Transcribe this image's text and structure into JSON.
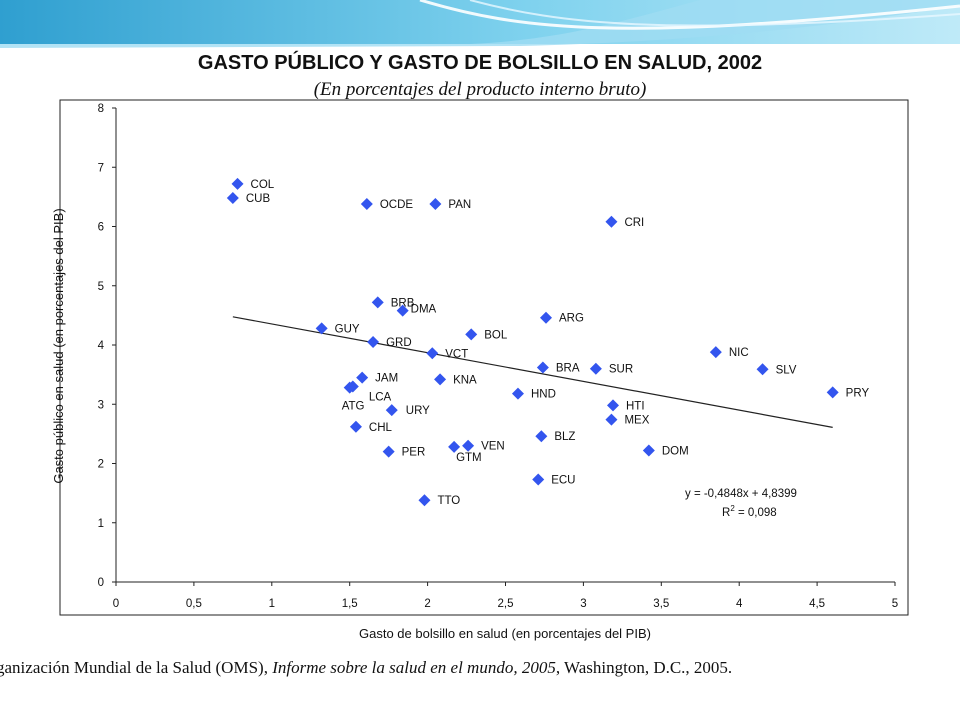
{
  "page": {
    "title": "GASTO PÚBLICO Y GASTO DE BOLSILLO EN SALUD, 2002",
    "subtitle": "(En porcentajes del producto interno bruto)",
    "source_part1": "ganización Mundial de la Salud (OMS), ",
    "source_part2": "Informe sobre la salud en el mundo, 2005",
    "source_part3": ", Washington, D.C., 2005."
  },
  "chart_data": {
    "type": "scatter",
    "title": "GASTO PÚBLICO Y GASTO DE BOLSILLO EN SALUD, 2002",
    "subtitle": "(En porcentajes del producto interno bruto)",
    "xlabel": "Gasto de bolsillo en salud (en porcentajes del PIB)",
    "ylabel": "Gasto público en salud (en porcentajes del PIB)",
    "xlim": [
      0,
      5
    ],
    "ylim": [
      0,
      8
    ],
    "x_ticks": [
      "0",
      "0,5",
      "1",
      "1,5",
      "2",
      "2,5",
      "3",
      "3,5",
      "4",
      "4,5",
      "5"
    ],
    "y_ticks": [
      "0",
      "1",
      "2",
      "3",
      "4",
      "5",
      "6",
      "7",
      "8"
    ],
    "grid": false,
    "marker_color": "#3355ee",
    "points": [
      {
        "label": "COL",
        "x": 0.78,
        "y": 6.72
      },
      {
        "label": "CUB",
        "x": 0.75,
        "y": 6.48
      },
      {
        "label": "OCDE",
        "x": 1.61,
        "y": 6.38
      },
      {
        "label": "PAN",
        "x": 2.05,
        "y": 6.38
      },
      {
        "label": "CRI",
        "x": 3.18,
        "y": 6.08
      },
      {
        "label": "BRB",
        "x": 1.68,
        "y": 4.72
      },
      {
        "label": "DMA",
        "x": 1.84,
        "y": 4.58
      },
      {
        "label": "ARG",
        "x": 2.76,
        "y": 4.46
      },
      {
        "label": "GUY",
        "x": 1.32,
        "y": 4.28
      },
      {
        "label": "BOL",
        "x": 2.28,
        "y": 4.18
      },
      {
        "label": "GRD",
        "x": 1.65,
        "y": 4.05
      },
      {
        "label": "VCT",
        "x": 2.03,
        "y": 3.86
      },
      {
        "label": "NIC",
        "x": 3.85,
        "y": 3.88
      },
      {
        "label": "BRA",
        "x": 2.74,
        "y": 3.62
      },
      {
        "label": "SUR",
        "x": 3.08,
        "y": 3.6
      },
      {
        "label": "SLV",
        "x": 4.15,
        "y": 3.59
      },
      {
        "label": "JAM",
        "x": 1.58,
        "y": 3.45
      },
      {
        "label": "KNA",
        "x": 2.08,
        "y": 3.42
      },
      {
        "label": "LCA",
        "x": 1.52,
        "y": 3.3
      },
      {
        "label": "ATG",
        "x": 1.5,
        "y": 3.28
      },
      {
        "label": "PRY",
        "x": 4.6,
        "y": 3.2
      },
      {
        "label": "HND",
        "x": 2.58,
        "y": 3.18
      },
      {
        "label": "HTI",
        "x": 3.19,
        "y": 2.98
      },
      {
        "label": "URY",
        "x": 1.77,
        "y": 2.9
      },
      {
        "label": "MEX",
        "x": 3.18,
        "y": 2.74
      },
      {
        "label": "CHL",
        "x": 1.54,
        "y": 2.62
      },
      {
        "label": "BLZ",
        "x": 2.73,
        "y": 2.46
      },
      {
        "label": "VEN",
        "x": 2.26,
        "y": 2.3
      },
      {
        "label": "GTM",
        "x": 2.17,
        "y": 2.28
      },
      {
        "label": "DOM",
        "x": 3.42,
        "y": 2.22
      },
      {
        "label": "PER",
        "x": 1.75,
        "y": 2.2
      },
      {
        "label": "ECU",
        "x": 2.71,
        "y": 1.73
      },
      {
        "label": "TTO",
        "x": 1.98,
        "y": 1.38
      }
    ],
    "trendline": {
      "slope": -0.4848,
      "intercept": 4.8399,
      "x_range": [
        0.75,
        4.6
      ]
    },
    "equation": "y = -0,4848x + 4,8399",
    "r2_label": "R",
    "r2_sup": "2",
    "r2_value": " = 0,098"
  }
}
